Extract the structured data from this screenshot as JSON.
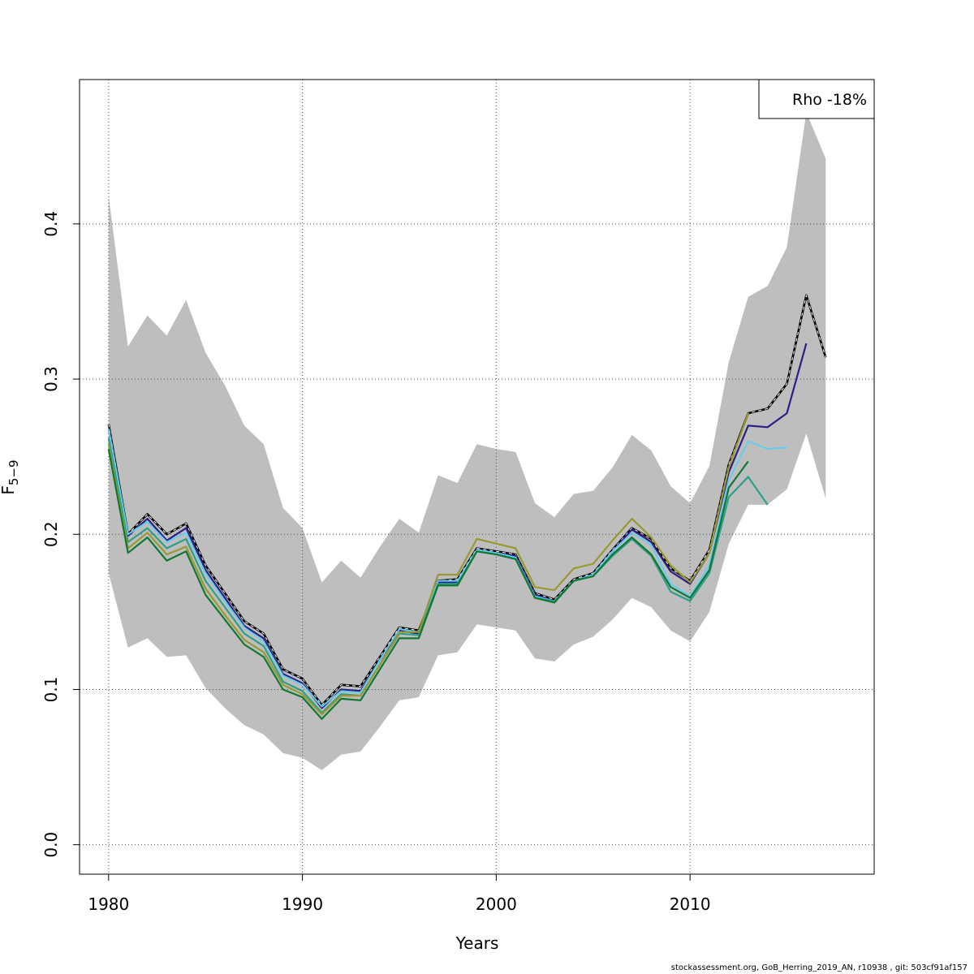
{
  "chart_data": {
    "type": "line",
    "xlabel": "Years",
    "ylabel": "F̅",
    "ylabel_subscript": "5−9",
    "xlim": [
      1978.5,
      2019.5
    ],
    "ylim": [
      -0.019,
      0.493
    ],
    "x_ticks": [
      1980,
      1990,
      2000,
      2010
    ],
    "x_tick_labels": [
      "1980",
      "1990",
      "2000",
      "2010"
    ],
    "y_ticks": [
      0.0,
      0.1,
      0.2,
      0.3,
      0.4
    ],
    "y_tick_labels": [
      "0.0",
      "0.1",
      "0.2",
      "0.3",
      "0.4"
    ],
    "grid": true,
    "legend": {
      "placement": "top-right",
      "text": "Rho -18%"
    },
    "band": {
      "color": "#bebebe",
      "x": [
        1980,
        1981,
        1982,
        1983,
        1984,
        1985,
        1986,
        1987,
        1988,
        1989,
        1990,
        1991,
        1992,
        1993,
        1994,
        1995,
        1996,
        1997,
        1998,
        1999,
        2000,
        2001,
        2002,
        2003,
        2004,
        2005,
        2006,
        2007,
        2008,
        2009,
        2010,
        2011,
        2012,
        2013,
        2014,
        2015,
        2016,
        2017
      ],
      "upper": [
        0.418,
        0.321,
        0.341,
        0.328,
        0.351,
        0.317,
        0.296,
        0.27,
        0.258,
        0.217,
        0.204,
        0.169,
        0.183,
        0.172,
        0.192,
        0.21,
        0.201,
        0.238,
        0.233,
        0.258,
        0.255,
        0.253,
        0.22,
        0.211,
        0.226,
        0.228,
        0.243,
        0.264,
        0.254,
        0.231,
        0.22,
        0.244,
        0.311,
        0.353,
        0.36,
        0.385,
        0.472,
        0.442
      ],
      "lower": [
        0.175,
        0.127,
        0.133,
        0.121,
        0.122,
        0.101,
        0.088,
        0.077,
        0.071,
        0.059,
        0.056,
        0.048,
        0.058,
        0.06,
        0.076,
        0.093,
        0.095,
        0.122,
        0.124,
        0.142,
        0.14,
        0.138,
        0.12,
        0.118,
        0.129,
        0.134,
        0.145,
        0.159,
        0.153,
        0.138,
        0.131,
        0.15,
        0.194,
        0.219,
        0.219,
        0.229,
        0.265,
        0.223
      ]
    },
    "series": [
      {
        "color": "#000000",
        "width": 2.6,
        "dashed": false,
        "x": [
          1980,
          1981,
          1982,
          1983,
          1984,
          1985,
          1986,
          1987,
          1988,
          1989,
          1990,
          1991,
          1992,
          1993,
          1994,
          1995,
          1996,
          1997,
          1998,
          1999,
          2000,
          2001,
          2002,
          2003,
          2004,
          2005,
          2006,
          2007,
          2008,
          2009,
          2010,
          2011,
          2012,
          2013,
          2014,
          2015,
          2016,
          2017
        ],
        "values": [
          0.271,
          0.2,
          0.213,
          0.2,
          0.207,
          0.18,
          0.162,
          0.144,
          0.136,
          0.113,
          0.107,
          0.09,
          0.103,
          0.102,
          0.121,
          0.14,
          0.138,
          0.17,
          0.171,
          0.191,
          0.189,
          0.187,
          0.162,
          0.158,
          0.171,
          0.175,
          0.19,
          0.204,
          0.197,
          0.178,
          0.17,
          0.19,
          0.245,
          0.278,
          0.281,
          0.297,
          0.354,
          0.314
        ]
      },
      {
        "color": "#ffffff",
        "width": 1.0,
        "dashed": true,
        "x": [
          1980,
          1981,
          1982,
          1983,
          1984,
          1985,
          1986,
          1987,
          1988,
          1989,
          1990,
          1991,
          1992,
          1993,
          1994,
          1995,
          1996,
          1997,
          1998,
          1999,
          2000,
          2001,
          2002,
          2003,
          2004,
          2005,
          2006,
          2007,
          2008,
          2009,
          2010,
          2011,
          2012,
          2013,
          2014,
          2015,
          2016,
          2017
        ],
        "values": [
          0.271,
          0.2,
          0.213,
          0.2,
          0.207,
          0.18,
          0.162,
          0.144,
          0.136,
          0.113,
          0.107,
          0.09,
          0.103,
          0.102,
          0.121,
          0.14,
          0.138,
          0.17,
          0.171,
          0.191,
          0.189,
          0.187,
          0.162,
          0.158,
          0.171,
          0.175,
          0.19,
          0.204,
          0.197,
          0.178,
          0.17,
          0.19,
          0.245,
          0.278,
          0.281,
          0.297,
          0.354,
          0.314
        ]
      },
      {
        "color": "#2c1f86",
        "width": 2.2,
        "dashed": false,
        "x": [
          1980,
          1981,
          1982,
          1983,
          1984,
          1985,
          1986,
          1987,
          1988,
          1989,
          1990,
          1991,
          1992,
          1993,
          1994,
          1995,
          1996,
          1997,
          1998,
          1999,
          2000,
          2001,
          2002,
          2003,
          2004,
          2005,
          2006,
          2007,
          2008,
          2009,
          2010,
          2011,
          2012,
          2013,
          2014,
          2015,
          2016
        ],
        "values": [
          0.268,
          0.199,
          0.21,
          0.196,
          0.204,
          0.177,
          0.159,
          0.141,
          0.133,
          0.11,
          0.104,
          0.088,
          0.1,
          0.099,
          0.119,
          0.138,
          0.136,
          0.169,
          0.169,
          0.19,
          0.188,
          0.186,
          0.161,
          0.157,
          0.17,
          0.174,
          0.189,
          0.203,
          0.195,
          0.176,
          0.168,
          0.188,
          0.24,
          0.27,
          0.269,
          0.278,
          0.323
        ]
      },
      {
        "color": "#66ccee",
        "width": 2.0,
        "dashed": false,
        "x": [
          1980,
          1981,
          1982,
          1983,
          1984,
          1985,
          1986,
          1987,
          1988,
          1989,
          1990,
          1991,
          1992,
          1993,
          1994,
          1995,
          1996,
          1997,
          1998,
          1999,
          2000,
          2001,
          2002,
          2003,
          2004,
          2005,
          2006,
          2007,
          2008,
          2009,
          2010,
          2011,
          2012,
          2013,
          2014,
          2015
        ],
        "values": [
          0.268,
          0.2,
          0.208,
          0.195,
          0.201,
          0.175,
          0.157,
          0.14,
          0.131,
          0.109,
          0.103,
          0.089,
          0.099,
          0.098,
          0.119,
          0.139,
          0.137,
          0.17,
          0.17,
          0.19,
          0.188,
          0.185,
          0.16,
          0.157,
          0.17,
          0.174,
          0.189,
          0.201,
          0.193,
          0.168,
          0.16,
          0.18,
          0.235,
          0.26,
          0.255,
          0.256
        ]
      },
      {
        "color": "#2ca089",
        "width": 2.2,
        "dashed": false,
        "x": [
          1980,
          1981,
          1982,
          1983,
          1984,
          1985,
          1986,
          1987,
          1988,
          1989,
          1990,
          1991,
          1992,
          1993,
          1994,
          1995,
          1996,
          1997,
          1998,
          1999,
          2000,
          2001,
          2002,
          2003,
          2004,
          2005,
          2006,
          2007,
          2008,
          2009,
          2010,
          2011,
          2012,
          2013,
          2014
        ],
        "values": [
          0.262,
          0.195,
          0.204,
          0.191,
          0.197,
          0.17,
          0.153,
          0.136,
          0.128,
          0.105,
          0.099,
          0.085,
          0.097,
          0.096,
          0.116,
          0.136,
          0.135,
          0.168,
          0.168,
          0.189,
          0.187,
          0.184,
          0.159,
          0.157,
          0.17,
          0.173,
          0.186,
          0.197,
          0.186,
          0.163,
          0.157,
          0.175,
          0.224,
          0.237,
          0.219
        ]
      },
      {
        "color": "#999933",
        "width": 2.2,
        "dashed": false,
        "x": [
          1980,
          1981,
          1982,
          1983,
          1984,
          1985,
          1986,
          1987,
          1988,
          1989,
          1990,
          1991,
          1992,
          1993,
          1994,
          1995,
          1996,
          1997,
          1998,
          1999,
          2000,
          2001,
          2002,
          2003,
          2004,
          2005,
          2006,
          2007,
          2008,
          2009,
          2010,
          2011,
          2012,
          2013
        ],
        "values": [
          0.258,
          0.191,
          0.201,
          0.187,
          0.192,
          0.165,
          0.148,
          0.132,
          0.124,
          0.103,
          0.097,
          0.084,
          0.096,
          0.096,
          0.116,
          0.137,
          0.137,
          0.174,
          0.174,
          0.197,
          0.194,
          0.191,
          0.166,
          0.164,
          0.178,
          0.181,
          0.196,
          0.21,
          0.198,
          0.18,
          0.169,
          0.188,
          0.243,
          0.278
        ]
      },
      {
        "color": "#117733",
        "width": 2.2,
        "dashed": false,
        "x": [
          1980,
          1981,
          1982,
          1983,
          1984,
          1985,
          1986,
          1987,
          1988,
          1989,
          1990,
          1991,
          1992,
          1993,
          1994,
          1995,
          1996,
          1997,
          1998,
          1999,
          2000,
          2001,
          2002,
          2003,
          2004,
          2005,
          2006,
          2007,
          2008,
          2009,
          2010,
          2011,
          2012,
          2013
        ],
        "values": [
          0.255,
          0.188,
          0.198,
          0.183,
          0.189,
          0.161,
          0.145,
          0.129,
          0.121,
          0.1,
          0.095,
          0.081,
          0.094,
          0.093,
          0.113,
          0.133,
          0.133,
          0.167,
          0.167,
          0.189,
          0.187,
          0.184,
          0.159,
          0.156,
          0.17,
          0.173,
          0.187,
          0.198,
          0.187,
          0.166,
          0.159,
          0.177,
          0.23,
          0.247
        ]
      }
    ]
  },
  "footer": "stockassessment.org, GoB_Herring_2019_AN, r10938 , git: 503cf91af157"
}
